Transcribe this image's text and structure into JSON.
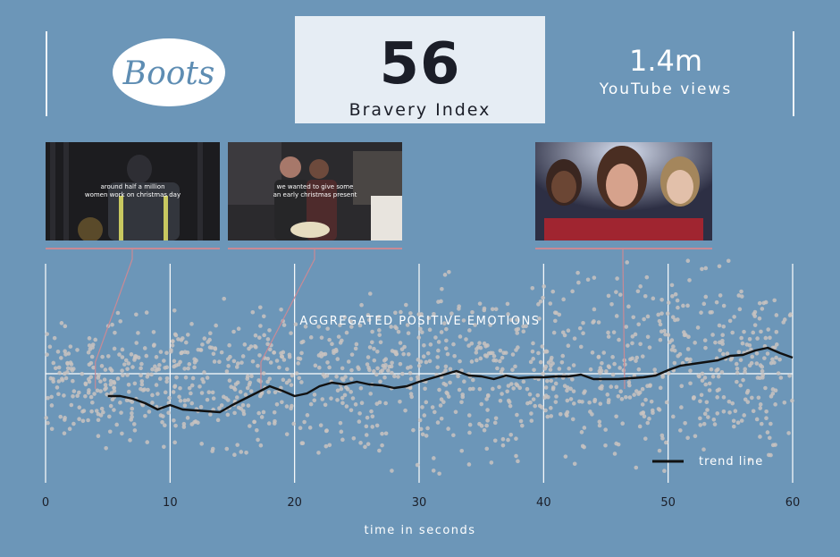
{
  "brand": {
    "logo_text": "Boots"
  },
  "index": {
    "value": "56",
    "label": "Bravery Index"
  },
  "views": {
    "value": "1.4m",
    "label": "YouTube views"
  },
  "thumbnails": [
    {
      "caption_line1": "around half a million",
      "caption_line2": "women work on christmas day",
      "at_seconds": 4
    },
    {
      "caption_line1": "we wanted to give some",
      "caption_line2": "an early christmas present",
      "at_seconds": 17.3
    },
    {
      "caption_line1": "",
      "caption_line2": "",
      "at_seconds": 46.5
    }
  ],
  "chart_data": {
    "type": "scatter",
    "title": "AGGREGATED POSITIVE EMOTIONS",
    "xlabel": "time in seconds",
    "ylabel": "",
    "xlim": [
      0,
      60
    ],
    "x_ticks": [
      0,
      10,
      20,
      30,
      40,
      50,
      60
    ],
    "grid": true,
    "legend": {
      "position": "bottom-right",
      "entries": [
        "trend line"
      ]
    },
    "colors": {
      "background": "#6c96b8",
      "points": "#c9c3c0",
      "trend": "#111111",
      "markers": "#c98a95"
    },
    "series": [
      {
        "name": "trend line",
        "type": "line",
        "x": [
          5,
          6,
          7,
          8,
          9,
          10,
          11,
          12,
          13,
          14,
          15,
          16,
          17,
          18,
          19,
          20,
          21,
          22,
          23,
          24,
          25,
          26,
          27,
          28,
          29,
          30,
          31,
          32,
          33,
          34,
          35,
          36,
          37,
          38,
          39,
          40,
          41,
          42,
          43,
          44,
          45,
          46,
          47,
          48,
          49,
          50,
          51,
          52,
          53,
          54,
          55,
          56,
          57,
          58,
          59,
          60
        ],
        "y": [
          -0.25,
          -0.25,
          -0.28,
          -0.33,
          -0.4,
          -0.35,
          -0.4,
          -0.41,
          -0.42,
          -0.43,
          -0.35,
          -0.28,
          -0.21,
          -0.14,
          -0.19,
          -0.25,
          -0.22,
          -0.14,
          -0.1,
          -0.12,
          -0.09,
          -0.12,
          -0.13,
          -0.16,
          -0.14,
          -0.09,
          -0.05,
          -0.01,
          0.03,
          -0.02,
          -0.03,
          -0.06,
          -0.02,
          -0.05,
          -0.04,
          -0.04,
          -0.03,
          -0.03,
          -0.01,
          -0.06,
          -0.06,
          -0.06,
          -0.05,
          -0.04,
          -0.02,
          0.04,
          0.09,
          0.11,
          0.13,
          0.15,
          0.2,
          0.21,
          0.26,
          0.29,
          0.23,
          0.18
        ]
      }
    ]
  }
}
